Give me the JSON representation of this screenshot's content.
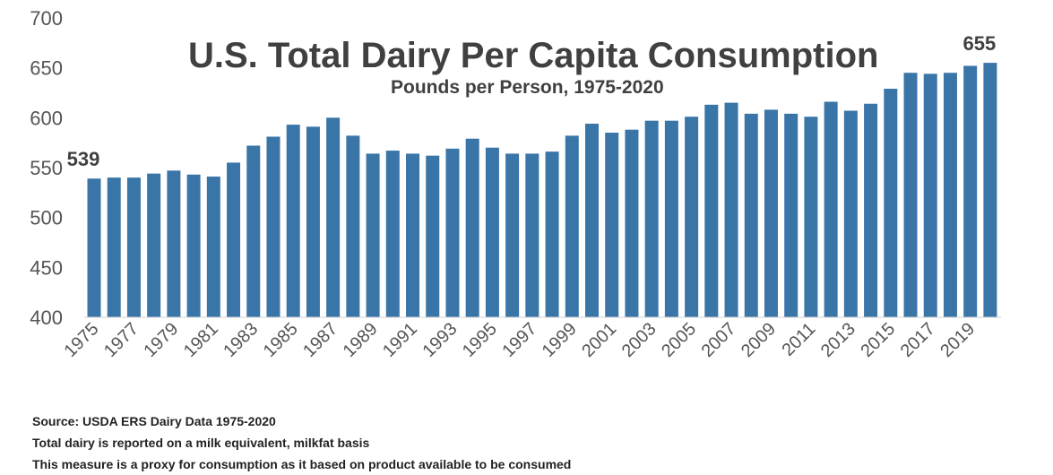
{
  "chart_data": {
    "type": "bar",
    "title": "U.S. Total Dairy Per Capita Consumption",
    "subtitle": "Pounds per Person, 1975-2020",
    "xlabel": "",
    "ylabel": "",
    "ylim": [
      400,
      700
    ],
    "yticks": [
      "400",
      "450",
      "500",
      "550",
      "600",
      "650",
      "700"
    ],
    "grid": false,
    "bar_color": "#3a75a8",
    "categories": [
      1975,
      1976,
      1977,
      1978,
      1979,
      1980,
      1981,
      1982,
      1983,
      1984,
      1985,
      1986,
      1987,
      1988,
      1989,
      1990,
      1991,
      1992,
      1993,
      1994,
      1995,
      1996,
      1997,
      1998,
      1999,
      2000,
      2001,
      2002,
      2003,
      2004,
      2005,
      2006,
      2007,
      2008,
      2009,
      2010,
      2011,
      2012,
      2013,
      2014,
      2015,
      2016,
      2017,
      2018,
      2019,
      2020
    ],
    "xtick_labels": [
      "1975",
      "1977",
      "1979",
      "1981",
      "1983",
      "1985",
      "1987",
      "1989",
      "1991",
      "1993",
      "1995",
      "1997",
      "1999",
      "2001",
      "2003",
      "2005",
      "2007",
      "2009",
      "2011",
      "2013",
      "2015",
      "2017",
      "2019"
    ],
    "values": [
      539,
      540,
      540,
      544,
      547,
      543,
      541,
      555,
      572,
      581,
      593,
      591,
      600,
      582,
      564,
      567,
      564,
      562,
      569,
      579,
      570,
      564,
      564,
      566,
      582,
      594,
      585,
      588,
      597,
      597,
      601,
      613,
      615,
      604,
      608,
      604,
      601,
      616,
      607,
      614,
      629,
      645,
      644,
      645,
      652,
      655
    ],
    "data_labels": [
      {
        "year": 1975,
        "label": "539"
      },
      {
        "year": 2020,
        "label": "655"
      }
    ]
  },
  "notes": [
    "Source: USDA ERS Dairy Data 1975-2020",
    "Total dairy is reported on a milk equivalent, milkfat basis",
    "This measure is a proxy for consumption as it based on product available to be consumed"
  ]
}
